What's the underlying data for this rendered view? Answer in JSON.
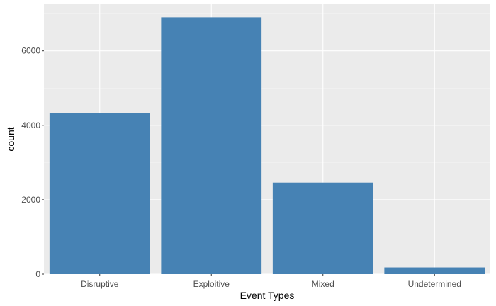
{
  "chart_data": {
    "type": "bar",
    "categories": [
      "Disruptive",
      "Exploitive",
      "Mixed",
      "Undetermined"
    ],
    "values": [
      4320,
      6900,
      2460,
      180
    ],
    "title": "",
    "xlabel": "Event Types",
    "ylabel": "count",
    "ylim": [
      0,
      7250
    ],
    "yticks": [
      0,
      2000,
      4000,
      6000
    ],
    "grid": true,
    "colors": {
      "bar": "#4682b4",
      "panel": "#ebebeb",
      "grid_major": "#ffffff",
      "grid_minor": "#f4f4f4",
      "tick_text": "#4d4d4d",
      "tick_mark": "#333333"
    }
  }
}
